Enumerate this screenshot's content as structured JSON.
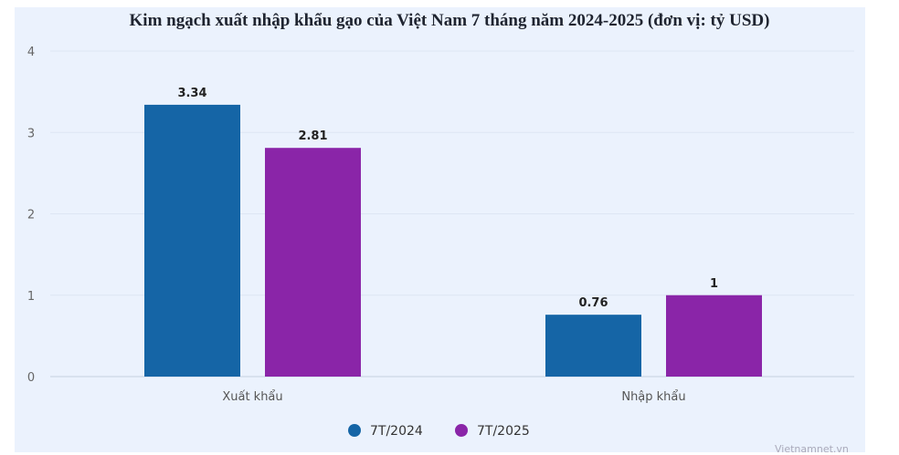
{
  "chart_data": {
    "type": "bar",
    "title": "Kim ngạch xuất nhập khẩu gạo của Việt Nam 7 tháng năm 2024-2025 (đơn vị: tỷ USD)",
    "categories": [
      "Xuất khẩu",
      "Nhập khẩu"
    ],
    "series": [
      {
        "name": "7T/2024",
        "values": [
          3.34,
          0.76
        ],
        "labels": [
          "3.34",
          "0.76"
        ],
        "color": "#1565a6"
      },
      {
        "name": "7T/2025",
        "values": [
          2.81,
          1
        ],
        "labels": [
          "2.81",
          "1"
        ],
        "color": "#8a25a8"
      }
    ],
    "ylim": [
      0,
      4
    ],
    "yticks": [
      "0",
      "1",
      "2",
      "3",
      "4"
    ],
    "grid": true,
    "legend": "bottom",
    "xlabel": "",
    "ylabel": ""
  },
  "watermark": "Vietnamnet.vn"
}
